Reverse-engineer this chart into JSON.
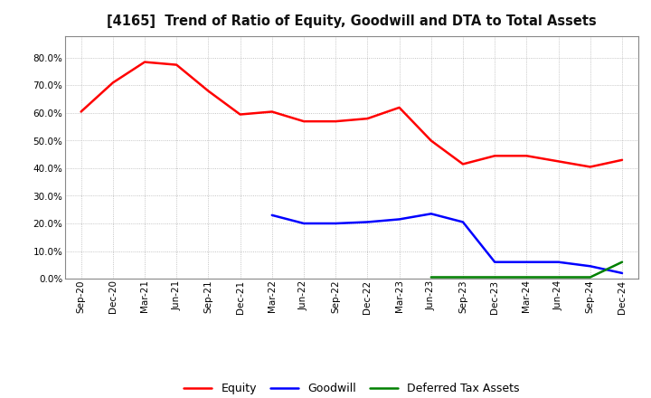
{
  "title": "[4165]  Trend of Ratio of Equity, Goodwill and DTA to Total Assets",
  "x_labels": [
    "Sep-20",
    "Dec-20",
    "Mar-21",
    "Jun-21",
    "Sep-21",
    "Dec-21",
    "Mar-22",
    "Jun-22",
    "Sep-22",
    "Dec-22",
    "Mar-23",
    "Jun-23",
    "Sep-23",
    "Dec-23",
    "Mar-24",
    "Jun-24",
    "Sep-24",
    "Dec-24"
  ],
  "equity": [
    60.5,
    71.0,
    78.5,
    77.5,
    68.0,
    59.5,
    60.5,
    57.0,
    57.0,
    58.0,
    62.0,
    50.0,
    41.5,
    44.5,
    44.5,
    42.5,
    40.5,
    43.0
  ],
  "goodwill": [
    null,
    null,
    null,
    null,
    null,
    null,
    23.0,
    20.0,
    20.0,
    20.5,
    21.5,
    23.5,
    20.5,
    6.0,
    6.0,
    6.0,
    4.5,
    2.0
  ],
  "dta": [
    null,
    null,
    null,
    null,
    null,
    null,
    null,
    null,
    null,
    null,
    null,
    0.5,
    0.5,
    0.5,
    0.5,
    0.5,
    0.5,
    6.0
  ],
  "equity_color": "#FF0000",
  "goodwill_color": "#0000FF",
  "dta_color": "#008000",
  "background_color": "#FFFFFF",
  "plot_background": "#FFFFFF",
  "grid_color": "#AAAAAA",
  "ylim": [
    0,
    88
  ],
  "yticks": [
    0,
    10,
    20,
    30,
    40,
    50,
    60,
    70,
    80
  ],
  "legend_labels": [
    "Equity",
    "Goodwill",
    "Deferred Tax Assets"
  ],
  "line_width": 1.8
}
